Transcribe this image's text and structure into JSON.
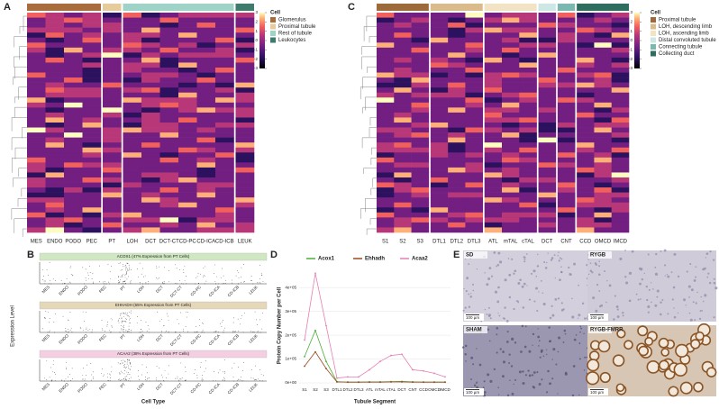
{
  "chart_data": [
    {
      "type": "heatmap",
      "label": "A",
      "legend_title": "Cell",
      "clim": [
        -3,
        3
      ],
      "colorbar_ticks": [
        3,
        2,
        1,
        0,
        -1,
        -2,
        -3
      ],
      "groups": [
        {
          "name": "Glomerulus",
          "color": "#a86c3d",
          "categories": [
            "MES",
            "ENDO",
            "PODO",
            "PEC"
          ]
        },
        {
          "name": "Proximal tubule",
          "color": "#e6cc9c",
          "categories": [
            "PT"
          ]
        },
        {
          "name": "Rest of tubule",
          "color": "#9fd3c7",
          "categories": [
            "LOH",
            "DCT",
            "DCT-CT",
            "CD-PC",
            "CD-ICA",
            "CD-ICB"
          ]
        },
        {
          "name": "Leukocytes",
          "color": "#3f7b6d",
          "categories": [
            "LEUK"
          ]
        }
      ]
    },
    {
      "type": "strip",
      "label": "B",
      "ylabel": "Expression Level",
      "xlabel": "Cell Type",
      "categories": [
        "MES",
        "ENDO",
        "PODO",
        "PEC",
        "PT",
        "LOH",
        "DCT",
        "DCT-CT",
        "CD-PC",
        "CD-ICA",
        "CD-ICB",
        "LEUK"
      ],
      "panels": [
        {
          "title": "ACOX1 (47% Expression from PT Cells)",
          "color": "#cfe8c2"
        },
        {
          "title": "EHHADH (65% Expression from PT Cells)",
          "color": "#e5d8b8"
        },
        {
          "title": "ACAA2 (38% Expression from PT Cells)",
          "color": "#f4cfe1"
        }
      ]
    },
    {
      "type": "heatmap",
      "label": "C",
      "legend_title": "Cell",
      "clim": [
        -3,
        3
      ],
      "colorbar_ticks": [
        3,
        2,
        1,
        0,
        -1,
        -2,
        -3
      ],
      "groups": [
        {
          "name": "Proximal tubule",
          "color": "#9c6a3b",
          "categories": [
            "S1",
            "S2",
            "S3"
          ]
        },
        {
          "name": "LOH, descending limb",
          "color": "#d9bb8c",
          "categories": [
            "DTL1",
            "DTL2",
            "DTL3"
          ]
        },
        {
          "name": "LOH, ascending limb",
          "color": "#f1e3c4",
          "categories": [
            "ATL",
            "mTAL",
            "cTAL"
          ]
        },
        {
          "name": "Distal convoluted tubule",
          "color": "#cde8e4",
          "categories": [
            "DCT"
          ]
        },
        {
          "name": "Connecting tubule",
          "color": "#7bb8b0",
          "categories": [
            "CNT"
          ]
        },
        {
          "name": "Collecting duct",
          "color": "#2f6d5f",
          "categories": [
            "CCD",
            "OMCD",
            "IMCD"
          ]
        }
      ]
    },
    {
      "type": "line",
      "label": "D",
      "ylabel": "Protein Copy Number per Cell",
      "xlabel": "Tubule Segment",
      "categories": [
        "S1",
        "S2",
        "S3",
        "DTL1",
        "DTL2",
        "DTL3",
        "ATL",
        "mTAL",
        "cTAL",
        "DCT",
        "CNT",
        "CCD",
        "OMCD",
        "IMCD"
      ],
      "ylim": [
        0,
        480000
      ],
      "yticks": [
        {
          "value": 0,
          "label": "0e+00"
        },
        {
          "value": 100000,
          "label": "1e+05"
        },
        {
          "value": 200000,
          "label": "2e+05"
        },
        {
          "value": 300000,
          "label": "3e+05"
        },
        {
          "value": 400000,
          "label": "4e+05"
        }
      ],
      "series": [
        {
          "name": "Acox1",
          "color": "#4caf3a",
          "values": [
            110000,
            220000,
            90000,
            5000,
            3000,
            3000,
            4000,
            4000,
            5000,
            6000,
            4000,
            3000,
            3000,
            3000
          ]
        },
        {
          "name": "Ehhadh",
          "color": "#9a4a1f",
          "values": [
            70000,
            130000,
            60000,
            4000,
            3000,
            3000,
            3000,
            3000,
            4000,
            4000,
            3000,
            3000,
            3000,
            3000
          ]
        },
        {
          "name": "Acaa2",
          "color": "#e67fb2",
          "values": [
            180000,
            460000,
            240000,
            20000,
            25000,
            25000,
            55000,
            90000,
            115000,
            120000,
            55000,
            50000,
            40000,
            25000
          ]
        }
      ]
    },
    {
      "type": "images",
      "label": "E",
      "images": [
        {
          "title": "SD",
          "scale": "100 µm"
        },
        {
          "title": "RYGB",
          "scale": "100 µm"
        },
        {
          "title": "SHAM",
          "scale": "100 µm"
        },
        {
          "title": "RYGB-FMRR",
          "scale": "100 µm"
        }
      ]
    }
  ]
}
